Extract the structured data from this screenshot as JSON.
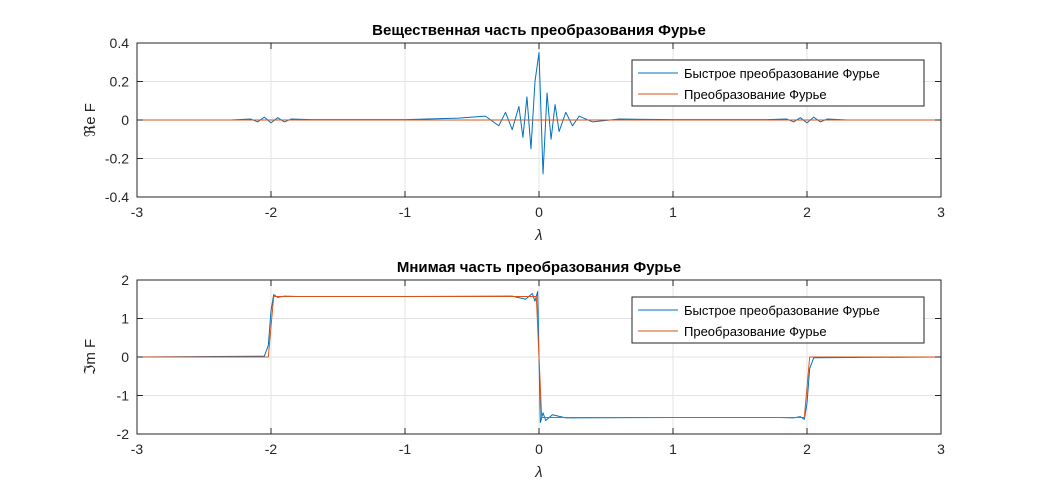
{
  "colors": {
    "fft": "#0072BD",
    "ft": "#D95319",
    "grid": "#e3e3e3",
    "axis": "#262626"
  },
  "chart_data": [
    {
      "type": "line",
      "title": "Вещественная часть преобразования Фурье",
      "xlabel": "λ",
      "ylabel": "ℜe F",
      "xlim": [
        -3,
        3
      ],
      "ylim": [
        -0.4,
        0.4
      ],
      "x_ticks": [
        "-3",
        "-2",
        "-1",
        "0",
        "1",
        "2",
        "3"
      ],
      "y_ticks": [
        "0.4",
        "0.2",
        "0",
        "-0.2",
        "-0.4"
      ],
      "grid": true,
      "legend_position": "top-right",
      "series": [
        {
          "name": "Быстрое преобразование Фурье",
          "color": "#0072BD",
          "x": [
            -3.0,
            -2.3,
            -2.15,
            -2.1,
            -2.05,
            -2.0,
            -1.95,
            -1.9,
            -1.85,
            -1.7,
            -1.0,
            -0.6,
            -0.4,
            -0.3,
            -0.25,
            -0.2,
            -0.15,
            -0.12,
            -0.09,
            -0.06,
            -0.03,
            0.0,
            0.03,
            0.06,
            0.09,
            0.12,
            0.15,
            0.2,
            0.25,
            0.3,
            0.4,
            0.6,
            1.0,
            1.7,
            1.85,
            1.9,
            1.95,
            2.0,
            2.05,
            2.1,
            2.15,
            2.3,
            3.0
          ],
          "y": [
            0,
            0,
            0.005,
            -0.01,
            0.015,
            -0.015,
            0.012,
            -0.01,
            0.005,
            0.002,
            0.002,
            0.01,
            0.02,
            -0.03,
            0.04,
            -0.05,
            0.07,
            -0.09,
            0.12,
            -0.15,
            0.2,
            0.35,
            -0.28,
            0.14,
            -0.1,
            0.08,
            -0.06,
            0.04,
            -0.03,
            0.02,
            -0.01,
            0.005,
            0.002,
            0.002,
            0.005,
            -0.01,
            0.012,
            -0.015,
            0.015,
            -0.01,
            0.005,
            0,
            0
          ]
        },
        {
          "name": "Преобразование Фурье",
          "color": "#D95319",
          "x": [
            -3,
            3
          ],
          "y": [
            0,
            0
          ]
        }
      ]
    },
    {
      "type": "line",
      "title": "Мнимая часть преобразования Фурье",
      "xlabel": "λ",
      "ylabel": "ℑm F",
      "xlim": [
        -3,
        3
      ],
      "ylim": [
        -2,
        2
      ],
      "x_ticks": [
        "-3",
        "-2",
        "-1",
        "0",
        "1",
        "2",
        "3"
      ],
      "y_ticks": [
        "2",
        "1",
        "0",
        "-1",
        "-2"
      ],
      "grid": true,
      "legend_position": "top-right",
      "series": [
        {
          "name": "Быстрое преобразование Фурье",
          "color": "#0072BD",
          "x": [
            -3.0,
            -2.05,
            -2.02,
            -2.0,
            -1.98,
            -1.95,
            -1.9,
            -1.8,
            -1.0,
            -0.2,
            -0.1,
            -0.05,
            -0.03,
            -0.01,
            0.0,
            0.01,
            0.03,
            0.05,
            0.1,
            0.2,
            1.0,
            1.8,
            1.9,
            1.95,
            1.98,
            2.0,
            2.02,
            2.05,
            3.0
          ],
          "y": [
            0,
            0.02,
            0.3,
            1.2,
            1.62,
            1.55,
            1.58,
            1.57,
            1.57,
            1.58,
            1.5,
            1.65,
            1.45,
            1.7,
            0,
            -1.7,
            -1.45,
            -1.65,
            -1.5,
            -1.58,
            -1.57,
            -1.57,
            -1.58,
            -1.55,
            -1.62,
            -1.2,
            -0.3,
            -0.02,
            0
          ]
        },
        {
          "name": "Преобразование Фурье",
          "color": "#D95319",
          "x": [
            -3.0,
            -2.02,
            -1.98,
            -0.02,
            0.02,
            1.98,
            2.02,
            3.0
          ],
          "y": [
            0,
            0,
            1.5708,
            1.5708,
            -1.5708,
            -1.5708,
            0,
            0
          ]
        }
      ]
    }
  ]
}
